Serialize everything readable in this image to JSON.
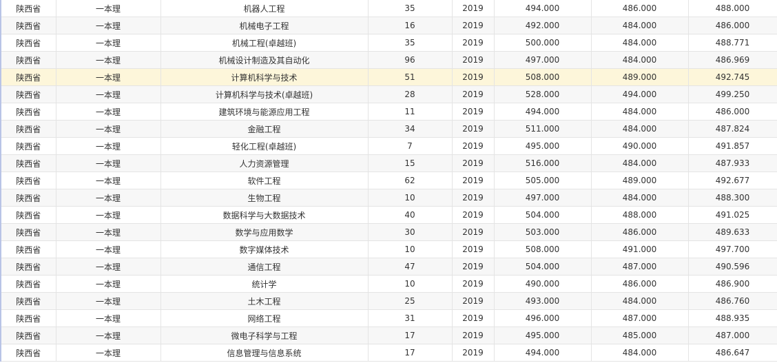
{
  "highlight_color": "#fdf6da",
  "highlighted_row": 4,
  "rows": [
    [
      "陕西省",
      "一本理",
      "机器人工程",
      "35",
      "2019",
      "494.000",
      "486.000",
      "488.000"
    ],
    [
      "陕西省",
      "一本理",
      "机械电子工程",
      "16",
      "2019",
      "492.000",
      "484.000",
      "486.000"
    ],
    [
      "陕西省",
      "一本理",
      "机械工程(卓越班)",
      "35",
      "2019",
      "500.000",
      "484.000",
      "488.771"
    ],
    [
      "陕西省",
      "一本理",
      "机械设计制造及其自动化",
      "96",
      "2019",
      "497.000",
      "484.000",
      "486.969"
    ],
    [
      "陕西省",
      "一本理",
      "计算机科学与技术",
      "51",
      "2019",
      "508.000",
      "489.000",
      "492.745"
    ],
    [
      "陕西省",
      "一本理",
      "计算机科学与技术(卓越班)",
      "28",
      "2019",
      "528.000",
      "494.000",
      "499.250"
    ],
    [
      "陕西省",
      "一本理",
      "建筑环境与能源应用工程",
      "11",
      "2019",
      "494.000",
      "484.000",
      "486.000"
    ],
    [
      "陕西省",
      "一本理",
      "金融工程",
      "34",
      "2019",
      "511.000",
      "484.000",
      "487.824"
    ],
    [
      "陕西省",
      "一本理",
      "轻化工程(卓越班)",
      "7",
      "2019",
      "495.000",
      "490.000",
      "491.857"
    ],
    [
      "陕西省",
      "一本理",
      "人力资源管理",
      "15",
      "2019",
      "516.000",
      "484.000",
      "487.933"
    ],
    [
      "陕西省",
      "一本理",
      "软件工程",
      "62",
      "2019",
      "505.000",
      "489.000",
      "492.677"
    ],
    [
      "陕西省",
      "一本理",
      "生物工程",
      "10",
      "2019",
      "497.000",
      "484.000",
      "488.300"
    ],
    [
      "陕西省",
      "一本理",
      "数据科学与大数据技术",
      "40",
      "2019",
      "504.000",
      "488.000",
      "491.025"
    ],
    [
      "陕西省",
      "一本理",
      "数学与应用数学",
      "30",
      "2019",
      "503.000",
      "486.000",
      "489.633"
    ],
    [
      "陕西省",
      "一本理",
      "数字媒体技术",
      "10",
      "2019",
      "508.000",
      "491.000",
      "497.700"
    ],
    [
      "陕西省",
      "一本理",
      "通信工程",
      "47",
      "2019",
      "504.000",
      "487.000",
      "490.596"
    ],
    [
      "陕西省",
      "一本理",
      "统计学",
      "10",
      "2019",
      "490.000",
      "486.000",
      "486.900"
    ],
    [
      "陕西省",
      "一本理",
      "土木工程",
      "25",
      "2019",
      "493.000",
      "484.000",
      "486.760"
    ],
    [
      "陕西省",
      "一本理",
      "网络工程",
      "31",
      "2019",
      "496.000",
      "487.000",
      "488.935"
    ],
    [
      "陕西省",
      "一本理",
      "微电子科学与工程",
      "17",
      "2019",
      "495.000",
      "485.000",
      "487.000"
    ],
    [
      "陕西省",
      "一本理",
      "信息管理与信息系统",
      "17",
      "2019",
      "494.000",
      "484.000",
      "486.647"
    ]
  ]
}
